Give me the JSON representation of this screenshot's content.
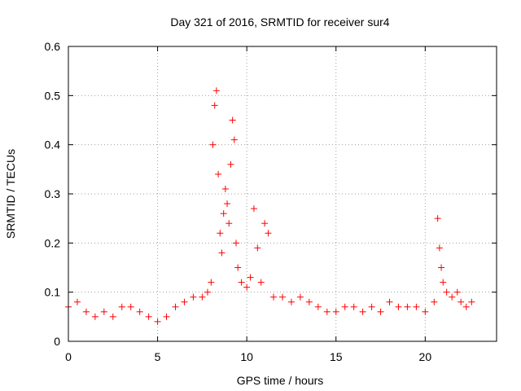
{
  "chart_data": {
    "type": "scatter",
    "title": "Day 321 of 2016, SRMTID for receiver sur4",
    "xlabel": "GPS time / hours",
    "ylabel": "SRMTID / TECUs",
    "xlim": [
      0,
      24
    ],
    "ylim": [
      0,
      0.6
    ],
    "xticks": [
      0,
      5,
      10,
      15,
      20
    ],
    "yticks": [
      0,
      0.1,
      0.2,
      0.3,
      0.4,
      0.5,
      0.6
    ],
    "grid": true,
    "marker": "+",
    "color": "#ff0000",
    "series": [
      {
        "name": "SRMTID sur4",
        "x": [
          0.0,
          0.5,
          1.0,
          1.5,
          2.0,
          2.5,
          3.0,
          3.5,
          4.0,
          4.5,
          5.0,
          5.5,
          6.0,
          6.5,
          7.0,
          7.5,
          7.8,
          8.0,
          8.1,
          8.2,
          8.3,
          8.4,
          8.5,
          8.6,
          8.7,
          8.8,
          8.9,
          9.0,
          9.1,
          9.2,
          9.3,
          9.4,
          9.5,
          9.7,
          10.0,
          10.2,
          10.4,
          10.6,
          10.8,
          11.0,
          11.2,
          11.5,
          12.0,
          12.5,
          13.0,
          13.5,
          14.0,
          14.5,
          15.0,
          15.5,
          16.0,
          16.5,
          17.0,
          17.5,
          18.0,
          18.5,
          19.0,
          19.5,
          20.0,
          20.5,
          20.7,
          20.8,
          20.9,
          21.0,
          21.2,
          21.5,
          21.8,
          22.0,
          22.3,
          22.6
        ],
        "y": [
          0.07,
          0.08,
          0.06,
          0.05,
          0.06,
          0.05,
          0.07,
          0.07,
          0.06,
          0.05,
          0.04,
          0.05,
          0.07,
          0.08,
          0.09,
          0.09,
          0.1,
          0.12,
          0.4,
          0.48,
          0.51,
          0.34,
          0.22,
          0.18,
          0.26,
          0.31,
          0.28,
          0.24,
          0.36,
          0.45,
          0.41,
          0.2,
          0.15,
          0.12,
          0.11,
          0.13,
          0.27,
          0.19,
          0.12,
          0.24,
          0.22,
          0.09,
          0.09,
          0.08,
          0.09,
          0.08,
          0.07,
          0.06,
          0.06,
          0.07,
          0.07,
          0.06,
          0.07,
          0.06,
          0.08,
          0.07,
          0.07,
          0.07,
          0.06,
          0.08,
          0.25,
          0.19,
          0.15,
          0.12,
          0.1,
          0.09,
          0.1,
          0.08,
          0.07,
          0.08
        ]
      }
    ]
  }
}
